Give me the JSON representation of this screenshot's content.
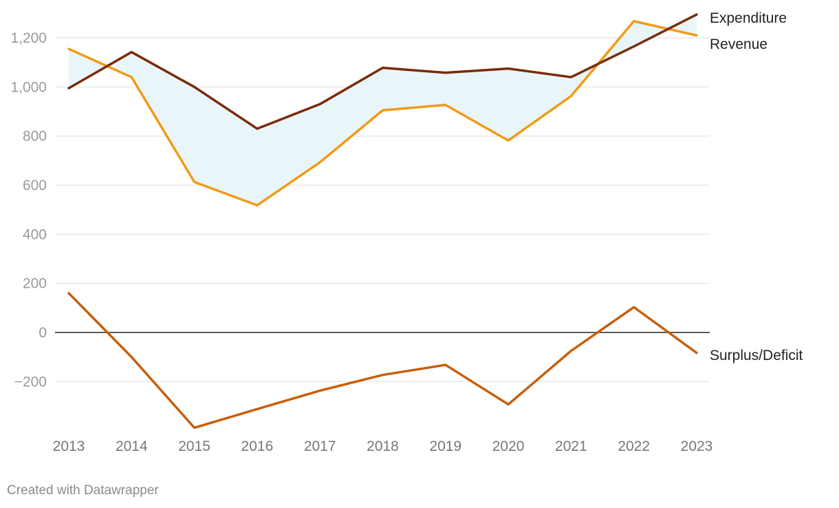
{
  "chart_data": {
    "type": "line",
    "title": "",
    "xlabel": "",
    "ylabel": "",
    "x": [
      "2013",
      "2014",
      "2015",
      "2016",
      "2017",
      "2018",
      "2019",
      "2020",
      "2021",
      "2022",
      "2023"
    ],
    "ylim": [
      -390,
      1300
    ],
    "yticks": [
      -200,
      0,
      200,
      400,
      600,
      800,
      1000,
      1200
    ],
    "ytick_labels": [
      "−200",
      "0",
      "200",
      "400",
      "600",
      "800",
      "1,000",
      "1,200"
    ],
    "grid": true,
    "legend": "direct labels at line ends (right)",
    "range_fill": {
      "between": [
        "Expenditure",
        "Revenue"
      ],
      "color": "#e8f6fa"
    },
    "series": [
      {
        "name": "Expenditure",
        "color": "#7a2a08",
        "values": [
          995,
          1142,
          1000,
          830,
          930,
          1078,
          1058,
          1075,
          1040,
          1165,
          1295
        ]
      },
      {
        "name": "Revenue",
        "color": "#f29a17",
        "values": [
          1155,
          1040,
          613,
          518,
          693,
          905,
          927,
          782,
          963,
          1268,
          1210
        ]
      },
      {
        "name": "Surplus/Deficit",
        "color": "#c85e0c",
        "values": [
          160,
          -100,
          -388,
          -312,
          -237,
          -173,
          -132,
          -293,
          -75,
          103,
          -83
        ]
      }
    ]
  },
  "footer": {
    "credit": "Created with Datawrapper"
  }
}
